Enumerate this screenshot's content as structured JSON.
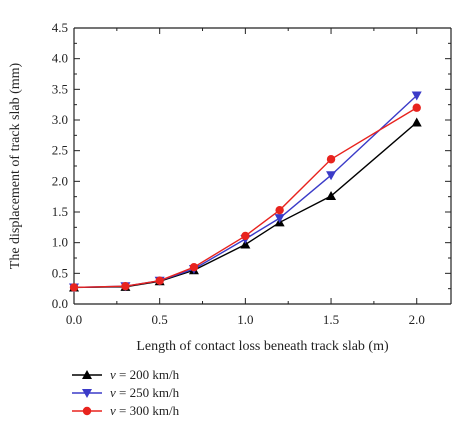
{
  "chart_data": {
    "type": "line",
    "title": "",
    "xlabel": "Length of contact loss beneath track slab (m)",
    "ylabel": "The displacement of track slab (mm)",
    "xlim": [
      0.0,
      2.2
    ],
    "ylim": [
      0.0,
      4.5
    ],
    "x_ticks": [
      "0.0",
      "0.5",
      "1.0",
      "1.5",
      "2.0"
    ],
    "y_ticks": [
      "0.0",
      "0.5",
      "1.0",
      "1.5",
      "2.0",
      "2.5",
      "3.0",
      "3.5",
      "4.0",
      "4.5"
    ],
    "x": [
      0.0,
      0.3,
      0.5,
      0.7,
      1.0,
      1.2,
      1.5,
      2.0
    ],
    "grid": false,
    "legend_position": "bottom-left",
    "series": [
      {
        "name": "v = 200 km/h",
        "var": "v",
        "rest": " = 200 km/h",
        "color": "#000000",
        "marker": "triangle-up",
        "values": [
          0.27,
          0.28,
          0.37,
          0.55,
          0.97,
          1.33,
          1.76,
          2.96
        ]
      },
      {
        "name": "v = 250 km/h",
        "var": "v",
        "rest": " = 250 km/h",
        "color": "#3b3bc8",
        "marker": "triangle-down",
        "values": [
          0.27,
          0.29,
          0.38,
          0.57,
          1.06,
          1.4,
          2.1,
          3.4
        ]
      },
      {
        "name": "v = 300 km/h",
        "var": "v",
        "rest": " = 300 km/h",
        "color": "#e8231e",
        "marker": "circle",
        "values": [
          0.27,
          0.29,
          0.38,
          0.6,
          1.11,
          1.53,
          2.36,
          3.2
        ]
      }
    ]
  }
}
